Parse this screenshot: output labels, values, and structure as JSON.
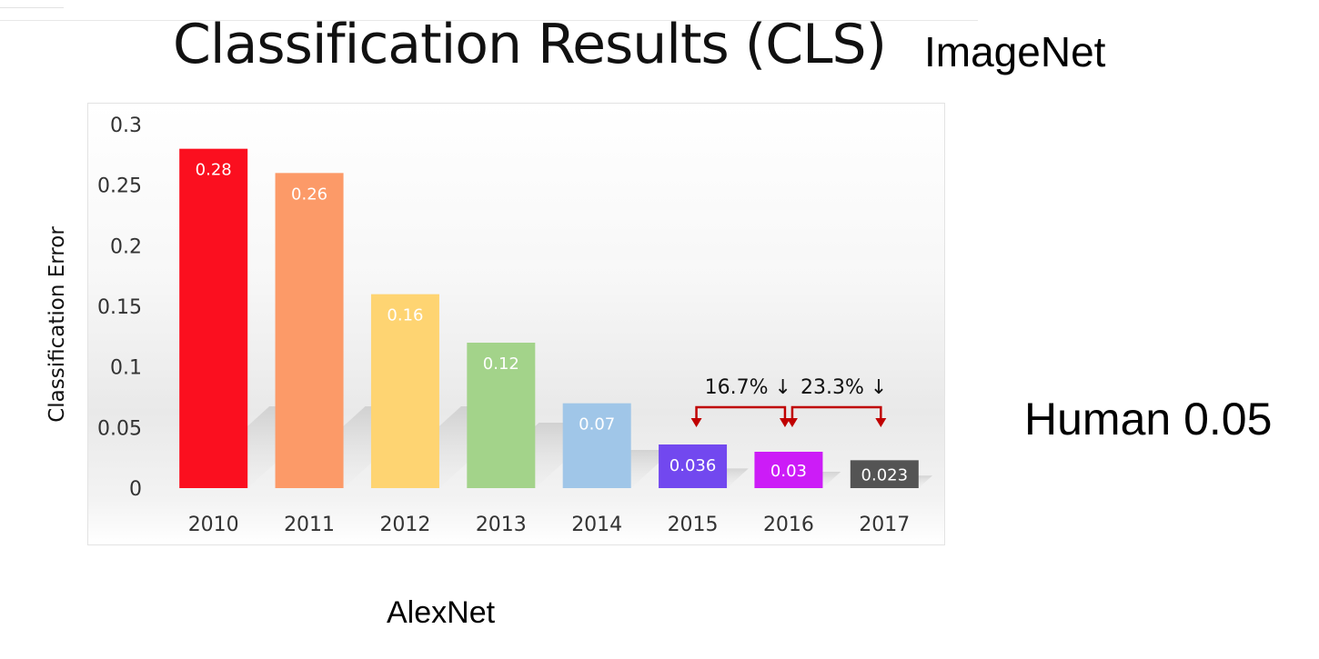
{
  "slide": {
    "title": "Classification Results (CLS)",
    "dataset": "ImageNet",
    "human_note": "Human 0.05",
    "model_note": "AlexNet"
  },
  "chart_data": {
    "type": "bar",
    "title": "",
    "xlabel": "",
    "ylabel": "Classification Error",
    "categories": [
      "2010",
      "2011",
      "2012",
      "2013",
      "2014",
      "2015",
      "2016",
      "2017"
    ],
    "values": [
      0.28,
      0.26,
      0.16,
      0.12,
      0.07,
      0.036,
      0.03,
      0.023
    ],
    "value_labels": [
      "0.28",
      "0.26",
      "0.16",
      "0.12",
      "0.07",
      "0.036",
      "0.03",
      "0.023"
    ],
    "colors": [
      "#fb0f1f",
      "#fc9a68",
      "#fed472",
      "#a3d38a",
      "#a0c6e8",
      "#7248ef",
      "#cc1cf7",
      "#545454"
    ],
    "ylim": [
      0,
      0.3
    ],
    "yticks": [
      0,
      0.05,
      0.1,
      0.15,
      0.2,
      0.25,
      0.3
    ],
    "ytick_labels": [
      "0",
      "0.05",
      "0.1",
      "0.15",
      "0.2",
      "0.25",
      "0.3"
    ],
    "grid": false,
    "legend": "none",
    "annotations": [
      {
        "text": "16.7% ↓",
        "from_category": "2015",
        "to_category": "2016",
        "color": "#c00000"
      },
      {
        "text": "23.3% ↓",
        "from_category": "2016",
        "to_category": "2017",
        "color": "#c00000"
      }
    ]
  }
}
